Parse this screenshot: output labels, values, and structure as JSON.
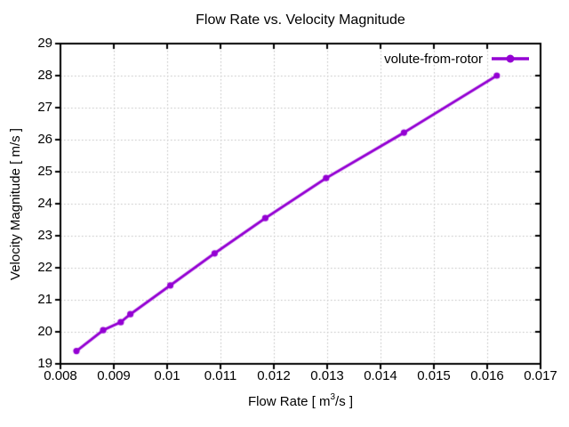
{
  "window": {
    "background": "#ffffff"
  },
  "chart_data": {
    "type": "line",
    "title": "Flow Rate vs. Velocity Magnitude",
    "xlabel": "Flow Rate [ m^3/s ]",
    "xlabel_parts": {
      "prefix": "Flow Rate [ m",
      "sup": "3",
      "suffix": "/s ]"
    },
    "ylabel": "Velocity Magnitude [ m/s ]",
    "xlim": [
      0.008,
      0.017
    ],
    "ylim": [
      19,
      29
    ],
    "x_tick_labels": [
      "0.008",
      "0.009",
      "0.01",
      "0.011",
      "0.012",
      "0.013",
      "0.014",
      "0.015",
      "0.016",
      "0.017"
    ],
    "y_tick_labels": [
      "19",
      "20",
      "21",
      "22",
      "23",
      "24",
      "25",
      "26",
      "27",
      "28",
      "29"
    ],
    "grid": "dotted",
    "legend_position": "top-right-inside",
    "series": [
      {
        "name": "volute-from-rotor",
        "color": "#9400d3",
        "marker": "filled-circle",
        "x": [
          0.0083,
          0.0088,
          0.00913,
          0.00931,
          0.01006,
          0.01089,
          0.01184,
          0.01298,
          0.01444,
          0.01618
        ],
        "y": [
          19.4,
          20.05,
          20.3,
          20.55,
          21.45,
          22.45,
          23.55,
          24.8,
          26.22,
          28.0
        ]
      }
    ],
    "colors": {
      "grid": "#c0c0c0",
      "border": "#000000",
      "text": "#000000"
    }
  }
}
